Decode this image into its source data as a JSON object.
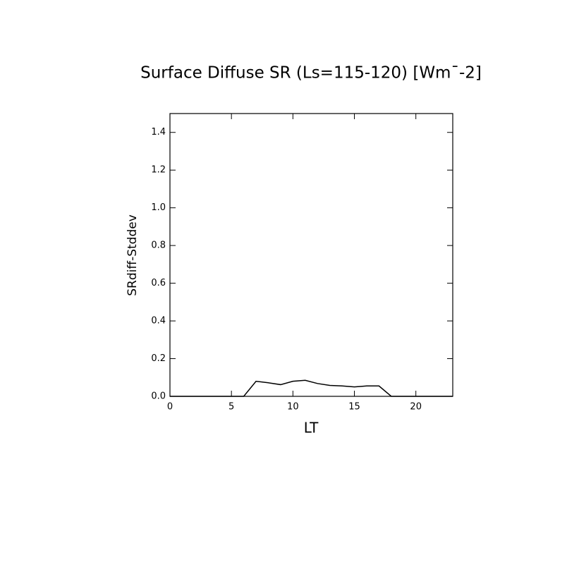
{
  "chart_data": {
    "type": "line",
    "title": "Surface Diffuse SR (Ls=115-120) [Wm¯-2]",
    "xlabel": "LT",
    "ylabel": "SRdiff-Stddev",
    "x": [
      0,
      1,
      2,
      3,
      4,
      5,
      6,
      7,
      8,
      9,
      10,
      11,
      12,
      13,
      14,
      15,
      16,
      17,
      18,
      19,
      20,
      21,
      22,
      23
    ],
    "series": [
      {
        "name": "SRdiff-Stddev",
        "color": "#000000",
        "values": [
          0,
          0,
          0,
          0,
          0,
          0,
          0,
          0.08,
          0.072,
          0.062,
          0.08,
          0.085,
          0.068,
          0.058,
          0.055,
          0.05,
          0.055,
          0.055,
          0,
          0,
          0,
          0,
          0,
          0
        ]
      }
    ],
    "xlim": [
      0,
      23
    ],
    "xticks": [
      0,
      5,
      10,
      15,
      20
    ],
    "ylim": [
      0,
      1.5
    ],
    "yticks": [
      {
        "value": 0,
        "label": "0.0"
      },
      {
        "value": 0.2,
        "label": "0.2"
      },
      {
        "value": 0.4,
        "label": "0.4"
      },
      {
        "value": 0.6,
        "label": "0.6"
      },
      {
        "value": 0.8,
        "label": "0.8"
      },
      {
        "value": 1.0,
        "label": "1.0"
      },
      {
        "value": 1.2,
        "label": "1.2"
      },
      {
        "value": 1.4,
        "label": "1.4"
      }
    ]
  }
}
